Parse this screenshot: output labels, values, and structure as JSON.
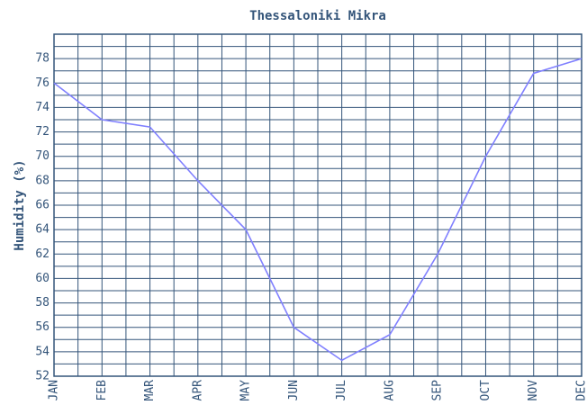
{
  "chart_data": {
    "type": "line",
    "title": "Thessaloniki Mikra",
    "y_label": "Humidity (%)",
    "categories": [
      "JAN",
      "FEB",
      "MAR",
      "APR",
      "MAY",
      "JUN",
      "JUL",
      "AUG",
      "SEP",
      "OCT",
      "NOV",
      "DEC"
    ],
    "series": [
      {
        "name": "Humidity",
        "color": "#8080ff",
        "values": [
          76,
          73,
          72.4,
          68,
          64,
          56,
          53.3,
          55.4,
          62,
          70,
          76.8,
          78
        ]
      }
    ],
    "ylim": [
      52,
      80
    ],
    "yticks": [
      52,
      54,
      56,
      58,
      60,
      62,
      64,
      66,
      68,
      70,
      72,
      74,
      76,
      78
    ],
    "grid": true
  }
}
